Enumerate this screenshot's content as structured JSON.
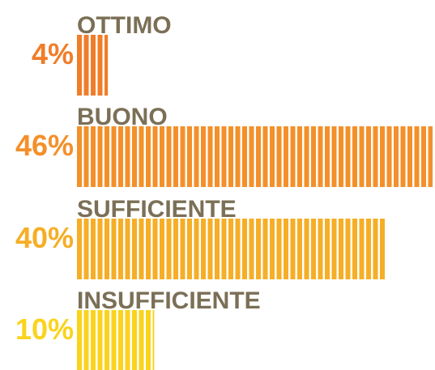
{
  "chart_data": {
    "type": "bar",
    "categories": [
      "OTTIMO",
      "BUONO",
      "SUFFICIENTE",
      "INSUFFICIENTE"
    ],
    "values": [
      4,
      46,
      40,
      10
    ],
    "value_labels": [
      "4%",
      "46%",
      "40%",
      "10%"
    ],
    "colors": [
      "#f07d2a",
      "#f3902a",
      "#f6ae26",
      "#fad31c"
    ]
  }
}
